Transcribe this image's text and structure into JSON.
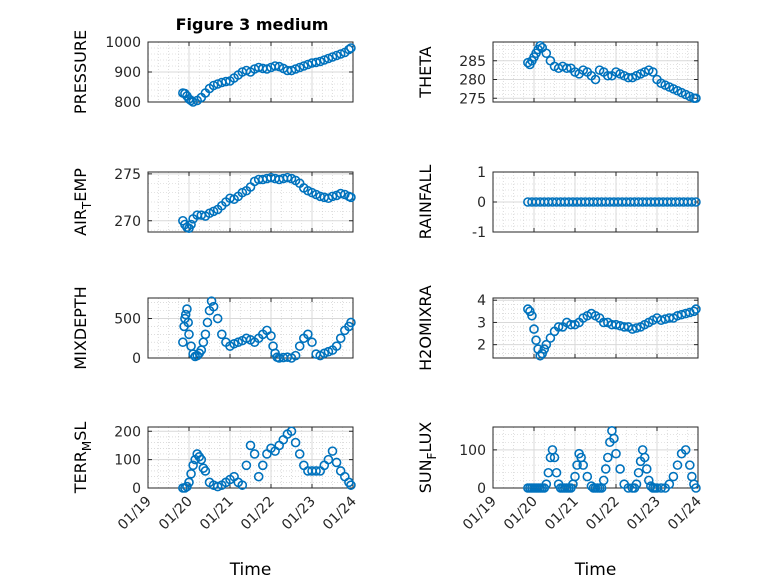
{
  "figure_title": "Figure 3 medium",
  "colors": {
    "marker": "#0072BD",
    "axis": "#262626",
    "grid": "#c8c8c8",
    "background": "#ffffff"
  },
  "chart_data": [
    {
      "type": "scatter",
      "title": "Figure 3 medium",
      "ylabel": "PRESSURE",
      "ylabel_parts": [
        "PRESSURE"
      ],
      "xlim": [
        0,
        5
      ],
      "ylim": [
        800,
        1000
      ],
      "yticks": [
        800,
        900,
        1000
      ],
      "xticks": [
        0,
        1,
        2,
        3,
        4,
        5
      ],
      "grid": true,
      "minor_grid": true,
      "x": [
        0.85,
        0.9,
        0.95,
        1.0,
        1.05,
        1.1,
        1.2,
        1.3,
        1.4,
        1.5,
        1.6,
        1.7,
        1.8,
        1.9,
        2.0,
        2.1,
        2.2,
        2.3,
        2.4,
        2.5,
        2.6,
        2.7,
        2.8,
        2.9,
        3.0,
        3.1,
        3.2,
        3.3,
        3.4,
        3.5,
        3.6,
        3.7,
        3.8,
        3.9,
        4.0,
        4.1,
        4.2,
        4.3,
        4.4,
        4.5,
        4.6,
        4.7,
        4.8,
        4.9,
        4.95
      ],
      "y": [
        830,
        828,
        820,
        810,
        805,
        800,
        805,
        815,
        830,
        845,
        855,
        860,
        865,
        868,
        870,
        880,
        890,
        900,
        905,
        900,
        910,
        915,
        912,
        910,
        915,
        920,
        918,
        912,
        905,
        905,
        910,
        915,
        920,
        925,
        930,
        932,
        935,
        940,
        945,
        950,
        955,
        960,
        965,
        975,
        980
      ]
    },
    {
      "type": "scatter",
      "ylabel": "THETA",
      "ylabel_parts": [
        "THETA"
      ],
      "xlim": [
        0,
        5
      ],
      "ylim": [
        274,
        290
      ],
      "yticks": [
        275,
        280,
        285
      ],
      "xticks": [
        0,
        1,
        2,
        3,
        4,
        5
      ],
      "grid": true,
      "minor_grid": true,
      "x": [
        0.85,
        0.9,
        0.95,
        1.0,
        1.05,
        1.1,
        1.15,
        1.2,
        1.3,
        1.4,
        1.5,
        1.6,
        1.7,
        1.8,
        1.9,
        2.0,
        2.1,
        2.2,
        2.3,
        2.4,
        2.5,
        2.6,
        2.7,
        2.8,
        2.9,
        3.0,
        3.1,
        3.2,
        3.3,
        3.4,
        3.5,
        3.6,
        3.7,
        3.8,
        3.9,
        4.0,
        4.1,
        4.2,
        4.3,
        4.4,
        4.5,
        4.6,
        4.7,
        4.8,
        4.9,
        4.95
      ],
      "y": [
        284.5,
        284,
        285,
        286,
        287,
        288,
        289,
        288.5,
        287,
        285,
        283.5,
        283,
        283.5,
        283,
        283,
        282,
        281.5,
        282.5,
        282,
        281,
        280,
        282.5,
        282,
        281,
        281,
        282,
        281.5,
        281,
        280.5,
        280.5,
        281,
        281.5,
        282,
        282.5,
        282,
        280,
        279,
        278.5,
        278,
        277.5,
        277,
        276.5,
        276,
        275.5,
        275,
        275
      ]
    },
    {
      "type": "scatter",
      "ylabel": "AIR_TEMP",
      "ylabel_parts": [
        "AIR",
        "T",
        "EMP"
      ],
      "xlim": [
        0,
        5
      ],
      "ylim": [
        268.8,
        275.2
      ],
      "yticks": [
        270,
        275
      ],
      "xticks": [
        0,
        1,
        2,
        3,
        4,
        5
      ],
      "grid": true,
      "minor_grid": true,
      "x": [
        0.85,
        0.9,
        0.95,
        1.0,
        1.05,
        1.1,
        1.2,
        1.3,
        1.4,
        1.5,
        1.6,
        1.7,
        1.8,
        1.9,
        2.0,
        2.1,
        2.2,
        2.3,
        2.4,
        2.5,
        2.6,
        2.7,
        2.8,
        2.9,
        3.0,
        3.1,
        3.2,
        3.3,
        3.4,
        3.5,
        3.6,
        3.7,
        3.8,
        3.9,
        4.0,
        4.1,
        4.2,
        4.3,
        4.4,
        4.5,
        4.6,
        4.7,
        4.8,
        4.9,
        4.95
      ],
      "y": [
        270,
        269.6,
        269.3,
        269.2,
        269.6,
        270.2,
        270.6,
        270.6,
        270.5,
        270.8,
        271,
        271.2,
        271.6,
        272,
        272.4,
        272.3,
        272.6,
        273,
        273.2,
        273.6,
        274.2,
        274.4,
        274.4,
        274.5,
        274.6,
        274.5,
        274.4,
        274.5,
        274.6,
        274.5,
        274.3,
        274,
        273.5,
        273.2,
        273,
        272.8,
        272.6,
        272.5,
        272.4,
        272.6,
        272.7,
        272.9,
        272.8,
        272.6,
        272.5
      ]
    },
    {
      "type": "scatter",
      "ylabel": "RAINFALL",
      "ylabel_parts": [
        "RAINFALL"
      ],
      "xlim": [
        0,
        5
      ],
      "ylim": [
        -1,
        1
      ],
      "yticks": [
        -1,
        0,
        1
      ],
      "xticks": [
        0,
        1,
        2,
        3,
        4,
        5
      ],
      "grid": true,
      "minor_grid": true,
      "x": [
        0.85,
        0.95,
        1.05,
        1.15,
        1.25,
        1.35,
        1.45,
        1.55,
        1.65,
        1.75,
        1.85,
        1.95,
        2.05,
        2.15,
        2.25,
        2.35,
        2.45,
        2.55,
        2.65,
        2.75,
        2.85,
        2.95,
        3.05,
        3.15,
        3.25,
        3.35,
        3.45,
        3.55,
        3.65,
        3.75,
        3.85,
        3.95,
        4.05,
        4.15,
        4.25,
        4.35,
        4.45,
        4.55,
        4.65,
        4.75,
        4.85,
        4.95
      ],
      "y": [
        0,
        0,
        0,
        0,
        0,
        0,
        0,
        0,
        0,
        0,
        0,
        0,
        0,
        0,
        0,
        0,
        0,
        0,
        0,
        0,
        0,
        0,
        0,
        0,
        0,
        0,
        0,
        0,
        0,
        0,
        0,
        0,
        0,
        0,
        0,
        0,
        0,
        0,
        0,
        0,
        0,
        0
      ]
    },
    {
      "type": "scatter",
      "ylabel": "MIXDEPTH",
      "ylabel_parts": [
        "MIXDEPTH"
      ],
      "xlim": [
        0,
        5
      ],
      "ylim": [
        0,
        760
      ],
      "yticks": [
        0,
        500
      ],
      "xticks": [
        0,
        1,
        2,
        3,
        4,
        5
      ],
      "grid": true,
      "minor_grid": true,
      "x": [
        0.85,
        0.88,
        0.9,
        0.92,
        0.95,
        0.98,
        1.0,
        1.05,
        1.1,
        1.15,
        1.2,
        1.25,
        1.3,
        1.35,
        1.4,
        1.45,
        1.5,
        1.55,
        1.6,
        1.7,
        1.8,
        1.9,
        2.0,
        2.1,
        2.2,
        2.3,
        2.4,
        2.5,
        2.6,
        2.7,
        2.8,
        2.9,
        3.0,
        3.05,
        3.1,
        3.15,
        3.2,
        3.3,
        3.4,
        3.5,
        3.6,
        3.7,
        3.8,
        3.9,
        4.0,
        4.1,
        4.2,
        4.3,
        4.4,
        4.5,
        4.6,
        4.7,
        4.8,
        4.9,
        4.95
      ],
      "y": [
        200,
        400,
        500,
        550,
        620,
        450,
        300,
        150,
        50,
        20,
        30,
        60,
        100,
        200,
        300,
        450,
        600,
        720,
        650,
        500,
        300,
        200,
        150,
        180,
        200,
        220,
        250,
        230,
        200,
        250,
        300,
        350,
        280,
        150,
        60,
        10,
        0,
        5,
        10,
        0,
        30,
        150,
        250,
        300,
        200,
        50,
        30,
        60,
        80,
        100,
        150,
        250,
        350,
        400,
        450
      ]
    },
    {
      "type": "scatter",
      "ylabel": "H2OMIXRA",
      "ylabel_parts": [
        "H2OMIXRA"
      ],
      "xlim": [
        0,
        5
      ],
      "ylim": [
        1.4,
        4.1
      ],
      "yticks": [
        2,
        3,
        4
      ],
      "xticks": [
        0,
        1,
        2,
        3,
        4,
        5
      ],
      "grid": true,
      "minor_grid": true,
      "x": [
        0.85,
        0.9,
        0.95,
        1.0,
        1.05,
        1.1,
        1.15,
        1.2,
        1.25,
        1.3,
        1.4,
        1.5,
        1.6,
        1.7,
        1.8,
        1.9,
        2.0,
        2.1,
        2.2,
        2.3,
        2.4,
        2.5,
        2.6,
        2.7,
        2.8,
        2.9,
        3.0,
        3.1,
        3.2,
        3.3,
        3.4,
        3.5,
        3.6,
        3.7,
        3.8,
        3.9,
        4.0,
        4.1,
        4.2,
        4.3,
        4.4,
        4.5,
        4.6,
        4.7,
        4.8,
        4.9,
        4.95
      ],
      "y": [
        3.6,
        3.5,
        3.3,
        2.7,
        2.2,
        1.8,
        1.5,
        1.6,
        1.8,
        2.0,
        2.3,
        2.6,
        2.8,
        2.8,
        3.0,
        2.9,
        2.9,
        3.0,
        3.2,
        3.3,
        3.4,
        3.3,
        3.2,
        3.0,
        3.0,
        2.9,
        2.9,
        2.85,
        2.8,
        2.8,
        2.7,
        2.75,
        2.8,
        2.9,
        3.0,
        3.1,
        3.2,
        3.1,
        3.15,
        3.2,
        3.2,
        3.3,
        3.35,
        3.4,
        3.45,
        3.5,
        3.6
      ]
    },
    {
      "type": "scatter",
      "ylabel": "TERR_MSL",
      "ylabel_parts": [
        "TERR",
        "M",
        "SL"
      ],
      "xlim": [
        0,
        5
      ],
      "ylim": [
        0,
        215
      ],
      "yticks": [
        0,
        100,
        200
      ],
      "xticks": [
        0,
        1,
        2,
        3,
        4,
        5
      ],
      "xticklabels": [
        "01/19",
        "01/20",
        "01/21",
        "01/22",
        "01/23",
        "01/24"
      ],
      "xlabel": "Time",
      "grid": true,
      "minor_grid": true,
      "x": [
        0.85,
        0.9,
        0.95,
        1.0,
        1.05,
        1.1,
        1.15,
        1.2,
        1.25,
        1.3,
        1.35,
        1.4,
        1.5,
        1.6,
        1.7,
        1.8,
        1.9,
        2.0,
        2.1,
        2.2,
        2.3,
        2.4,
        2.5,
        2.6,
        2.7,
        2.8,
        2.9,
        3.0,
        3.1,
        3.2,
        3.3,
        3.4,
        3.5,
        3.6,
        3.7,
        3.8,
        3.9,
        4.0,
        4.1,
        4.2,
        4.3,
        4.4,
        4.5,
        4.6,
        4.7,
        4.8,
        4.9,
        4.95
      ],
      "y": [
        0,
        0,
        5,
        20,
        50,
        80,
        100,
        120,
        110,
        100,
        70,
        60,
        20,
        10,
        5,
        10,
        20,
        30,
        40,
        20,
        10,
        80,
        150,
        120,
        40,
        80,
        120,
        140,
        130,
        150,
        170,
        190,
        200,
        160,
        120,
        80,
        60,
        60,
        60,
        60,
        80,
        100,
        130,
        90,
        60,
        40,
        20,
        10
      ]
    },
    {
      "type": "scatter",
      "ylabel": "SUN_FLUX",
      "ylabel_parts": [
        "SUN",
        "F",
        "LUX"
      ],
      "xlim": [
        0,
        5
      ],
      "ylim": [
        0,
        160
      ],
      "yticks": [
        0,
        100
      ],
      "xticks": [
        0,
        1,
        2,
        3,
        4,
        5
      ],
      "xticklabels": [
        "01/19",
        "01/20",
        "01/21",
        "01/22",
        "01/23",
        "01/24"
      ],
      "xlabel": "Time",
      "grid": true,
      "minor_grid": true,
      "x": [
        0.85,
        0.9,
        0.95,
        1.0,
        1.05,
        1.1,
        1.15,
        1.2,
        1.25,
        1.3,
        1.35,
        1.4,
        1.45,
        1.5,
        1.55,
        1.6,
        1.65,
        1.7,
        1.75,
        1.8,
        1.85,
        1.9,
        1.95,
        2.0,
        2.05,
        2.1,
        2.15,
        2.2,
        2.3,
        2.4,
        2.45,
        2.5,
        2.55,
        2.6,
        2.65,
        2.7,
        2.75,
        2.8,
        2.85,
        2.9,
        2.95,
        3.0,
        3.1,
        3.2,
        3.3,
        3.4,
        3.45,
        3.5,
        3.55,
        3.6,
        3.65,
        3.7,
        3.75,
        3.8,
        3.85,
        3.9,
        3.95,
        4.0,
        4.1,
        4.2,
        4.3,
        4.4,
        4.5,
        4.6,
        4.7,
        4.8,
        4.85,
        4.9,
        4.95
      ],
      "y": [
        0,
        0,
        0,
        0,
        0,
        0,
        0,
        0,
        0,
        10,
        40,
        80,
        100,
        80,
        40,
        10,
        0,
        0,
        0,
        0,
        0,
        0,
        10,
        30,
        60,
        90,
        80,
        60,
        30,
        5,
        0,
        0,
        0,
        0,
        0,
        20,
        50,
        80,
        120,
        150,
        130,
        90,
        50,
        10,
        0,
        0,
        0,
        10,
        40,
        70,
        100,
        80,
        50,
        20,
        5,
        0,
        0,
        0,
        0,
        0,
        10,
        30,
        60,
        90,
        100,
        60,
        30,
        10,
        0
      ]
    }
  ]
}
